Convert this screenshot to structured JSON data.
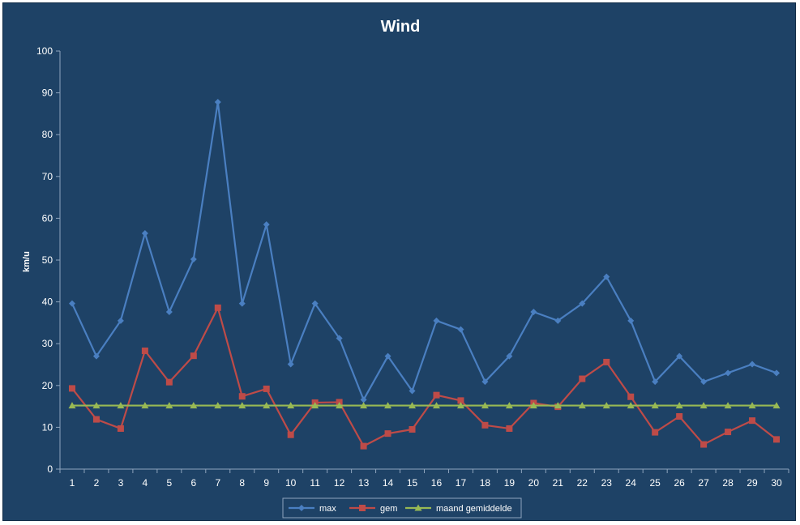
{
  "chart_data": {
    "type": "line",
    "title": "Wind",
    "xlabel": "",
    "ylabel": "km/u",
    "ylim": [
      0,
      100
    ],
    "yticks": [
      0,
      10,
      20,
      30,
      40,
      50,
      60,
      70,
      80,
      90,
      100
    ],
    "grid": false,
    "legend_position": "bottom",
    "x": [
      1,
      2,
      3,
      4,
      5,
      6,
      7,
      8,
      9,
      10,
      11,
      12,
      13,
      14,
      15,
      16,
      17,
      18,
      19,
      20,
      21,
      22,
      23,
      24,
      25,
      26,
      27,
      28,
      29,
      30
    ],
    "series": [
      {
        "name": "max",
        "color": "#4a7fc1",
        "marker": "diamond",
        "values": [
          39.6,
          27.0,
          35.5,
          56.4,
          37.6,
          50.2,
          87.8,
          39.6,
          58.5,
          25.1,
          39.6,
          31.3,
          16.6,
          27.0,
          18.7,
          35.5,
          33.4,
          20.9,
          27.0,
          37.6,
          35.5,
          39.6,
          46.0,
          35.5,
          20.9,
          27.0,
          20.9,
          23.0,
          25.1,
          23.0
        ]
      },
      {
        "name": "gem",
        "color": "#be4b48",
        "marker": "square",
        "values": [
          19.3,
          11.9,
          9.7,
          28.3,
          20.8,
          27.1,
          38.6,
          17.4,
          19.2,
          8.2,
          15.9,
          16.0,
          5.5,
          8.5,
          9.5,
          17.7,
          16.4,
          10.5,
          9.7,
          15.8,
          14.9,
          21.6,
          25.6,
          17.3,
          8.8,
          12.6,
          5.9,
          8.9,
          11.6,
          7.1
        ]
      },
      {
        "name": "maand gemiddelde",
        "color": "#98b954",
        "marker": "triangle",
        "values": [
          15.2,
          15.2,
          15.2,
          15.2,
          15.2,
          15.2,
          15.2,
          15.2,
          15.2,
          15.2,
          15.2,
          15.2,
          15.2,
          15.2,
          15.2,
          15.2,
          15.2,
          15.2,
          15.2,
          15.2,
          15.2,
          15.2,
          15.2,
          15.2,
          15.2,
          15.2,
          15.2,
          15.2,
          15.2,
          15.2
        ]
      }
    ]
  }
}
